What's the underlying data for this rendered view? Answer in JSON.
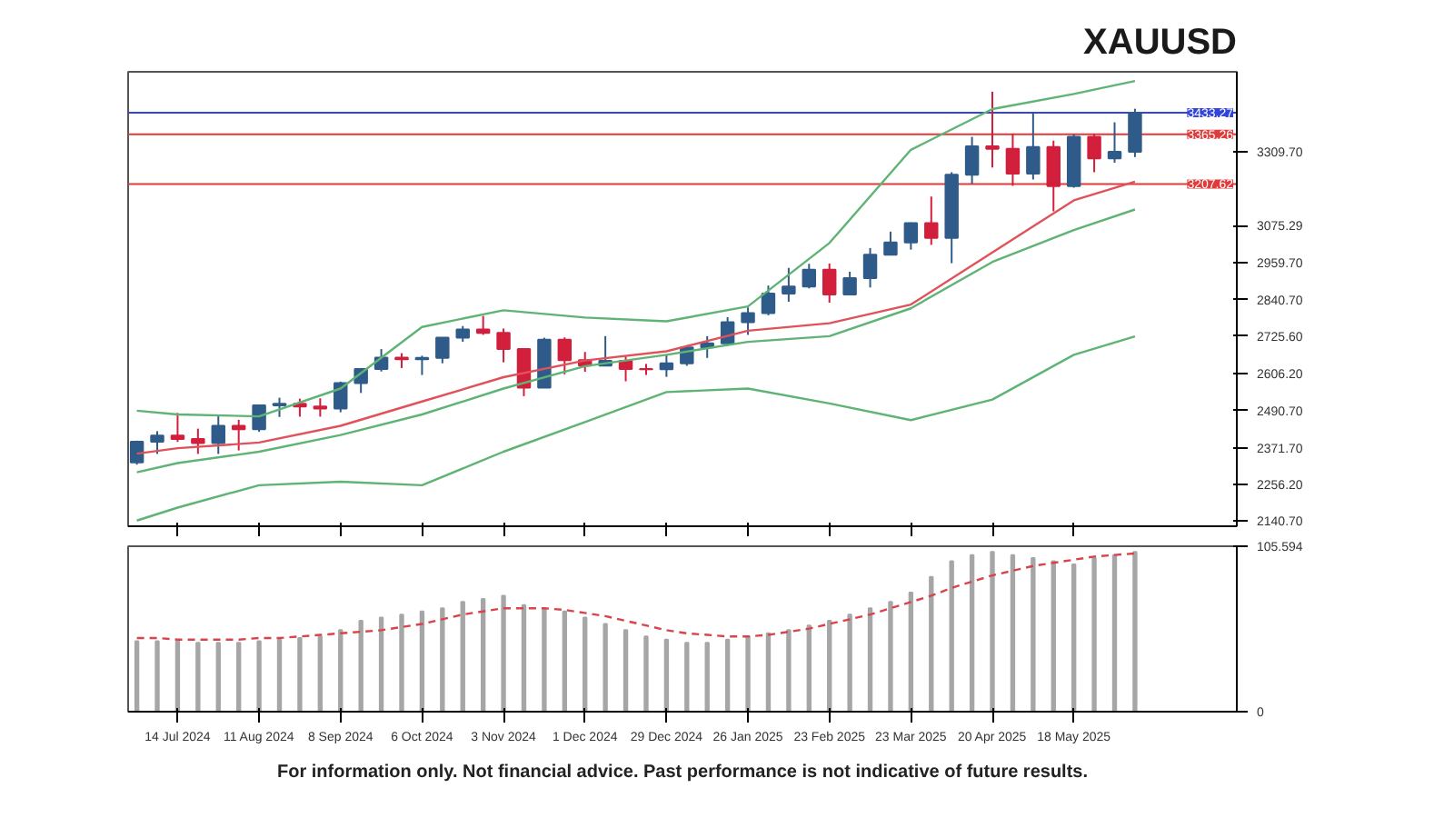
{
  "chart_data": [
    {
      "type": "candlestick",
      "title": "XAUUSD",
      "x": [
        "2024-06-30",
        "2024-07-07",
        "2024-07-14",
        "2024-07-21",
        "2024-07-28",
        "2024-08-04",
        "2024-08-11",
        "2024-08-18",
        "2024-08-25",
        "2024-09-01",
        "2024-09-08",
        "2024-09-15",
        "2024-09-22",
        "2024-09-29",
        "2024-10-06",
        "2024-10-13",
        "2024-10-20",
        "2024-10-27",
        "2024-11-03",
        "2024-11-10",
        "2024-11-17",
        "2024-11-24",
        "2024-12-01",
        "2024-12-08",
        "2024-12-15",
        "2024-12-22",
        "2024-12-29",
        "2025-01-05",
        "2025-01-12",
        "2025-01-19",
        "2025-01-26",
        "2025-02-02",
        "2025-02-09",
        "2025-02-16",
        "2025-02-23",
        "2025-03-02",
        "2025-03-09",
        "2025-03-16",
        "2025-03-23",
        "2025-03-30",
        "2025-04-06",
        "2025-04-13",
        "2025-04-20",
        "2025-04-27",
        "2025-05-04",
        "2025-05-11",
        "2025-05-18",
        "2025-05-25",
        "2025-06-01",
        "2025-06-08"
      ],
      "ohlc": [
        [
          2326,
          2395,
          2319,
          2392
        ],
        [
          2392,
          2425,
          2353,
          2411
        ],
        [
          2411,
          2483,
          2391,
          2400
        ],
        [
          2400,
          2433,
          2353,
          2387
        ],
        [
          2387,
          2477,
          2353,
          2442
        ],
        [
          2442,
          2461,
          2364,
          2431
        ],
        [
          2431,
          2509,
          2423,
          2507
        ],
        [
          2507,
          2531,
          2470,
          2512
        ],
        [
          2512,
          2528,
          2471,
          2503
        ],
        [
          2503,
          2529,
          2471,
          2497
        ],
        [
          2497,
          2582,
          2485,
          2577
        ],
        [
          2577,
          2625,
          2546,
          2622
        ],
        [
          2622,
          2685,
          2614,
          2658
        ],
        [
          2658,
          2672,
          2625,
          2653
        ],
        [
          2653,
          2664,
          2603,
          2657
        ],
        [
          2657,
          2721,
          2640,
          2721
        ],
        [
          2721,
          2758,
          2708,
          2747
        ],
        [
          2747,
          2790,
          2730,
          2736
        ],
        [
          2736,
          2750,
          2643,
          2685
        ],
        [
          2685,
          2687,
          2536,
          2563
        ],
        [
          2563,
          2721,
          2563,
          2715
        ],
        [
          2715,
          2722,
          2605,
          2650
        ],
        [
          2650,
          2676,
          2613,
          2633
        ],
        [
          2633,
          2726,
          2632,
          2648
        ],
        [
          2648,
          2664,
          2583,
          2622
        ],
        [
          2622,
          2638,
          2603,
          2621
        ],
        [
          2621,
          2665,
          2597,
          2640
        ],
        [
          2640,
          2697,
          2632,
          2690
        ],
        [
          2690,
          2726,
          2657,
          2703
        ],
        [
          2703,
          2786,
          2701,
          2770
        ],
        [
          2770,
          2817,
          2730,
          2799
        ],
        [
          2799,
          2886,
          2792,
          2861
        ],
        [
          2861,
          2942,
          2835,
          2883
        ],
        [
          2883,
          2955,
          2877,
          2936
        ],
        [
          2936,
          2956,
          2832,
          2858
        ],
        [
          2858,
          2930,
          2858,
          2910
        ],
        [
          2910,
          3005,
          2880,
          2984
        ],
        [
          2984,
          3057,
          2982,
          3023
        ],
        [
          3023,
          3086,
          3000,
          3084
        ],
        [
          3084,
          3168,
          3015,
          3037
        ],
        [
          3037,
          3245,
          2957,
          3237
        ],
        [
          3237,
          3357,
          3208,
          3327
        ],
        [
          3327,
          3500,
          3260,
          3319
        ],
        [
          3319,
          3367,
          3202,
          3241
        ],
        [
          3241,
          3435,
          3222,
          3325
        ],
        [
          3325,
          3345,
          3121,
          3201
        ],
        [
          3201,
          3365,
          3196,
          3357
        ],
        [
          3357,
          3366,
          3245,
          3289
        ],
        [
          3289,
          3403,
          3275,
          3310
        ],
        [
          3310,
          3446,
          3293,
          3433
        ]
      ],
      "colors": [
        "#2f5b8a",
        "#2f5b8a",
        "#d11f3c",
        "#d11f3c",
        "#2f5b8a",
        "#d11f3c",
        "#2f5b8a",
        "#2f5b8a",
        "#d11f3c",
        "#d11f3c",
        "#2f5b8a",
        "#2f5b8a",
        "#2f5b8a",
        "#d11f3c",
        "#2f5b8a",
        "#2f5b8a",
        "#2f5b8a",
        "#d11f3c",
        "#d11f3c",
        "#d11f3c",
        "#2f5b8a",
        "#d11f3c",
        "#d11f3c",
        "#2f5b8a",
        "#d11f3c",
        "#d11f3c",
        "#2f5b8a",
        "#2f5b8a",
        "#2f5b8a",
        "#2f5b8a",
        "#2f5b8a",
        "#2f5b8a",
        "#2f5b8a",
        "#2f5b8a",
        "#d11f3c",
        "#2f5b8a",
        "#2f5b8a",
        "#2f5b8a",
        "#2f5b8a",
        "#d11f3c",
        "#2f5b8a",
        "#2f5b8a",
        "#d11f3c",
        "#d11f3c",
        "#2f5b8a",
        "#d11f3c",
        "#2f5b8a",
        "#d11f3c",
        "#2f5b8a",
        "#2f5b8a"
      ],
      "series": [
        {
          "type": "line",
          "color": "#5fb374",
          "x": [
            "2024-06-30",
            "2024-07-14",
            "2024-08-11",
            "2024-09-08",
            "2024-10-06",
            "2024-11-03",
            "2024-12-01",
            "2024-12-29",
            "2025-01-26",
            "2025-02-23",
            "2025-03-23",
            "2025-04-20",
            "2025-05-18",
            "2025-06-08"
          ],
          "values": [
            2490,
            2478,
            2472,
            2560,
            2755,
            2808,
            2785,
            2773,
            2820,
            3021,
            3316,
            3445,
            3493,
            3534
          ]
        },
        {
          "type": "line",
          "color": "#e0525a",
          "x": [
            "2024-06-30",
            "2024-07-14",
            "2024-08-11",
            "2024-09-08",
            "2024-10-06",
            "2024-11-03",
            "2024-12-01",
            "2024-12-29",
            "2025-01-26",
            "2025-02-23",
            "2025-03-23",
            "2025-04-20",
            "2025-05-18",
            "2025-06-08"
          ],
          "values": [
            2354,
            2371,
            2389,
            2442,
            2519,
            2596,
            2649,
            2678,
            2743,
            2767,
            2826,
            2991,
            3156,
            3215
          ]
        },
        {
          "type": "line",
          "color": "#5fb374",
          "x": [
            "2024-06-30",
            "2024-07-14",
            "2024-08-11",
            "2024-09-08",
            "2024-10-06",
            "2024-11-03",
            "2024-12-01",
            "2024-12-29",
            "2025-01-26",
            "2025-02-23",
            "2025-03-23",
            "2025-04-20",
            "2025-05-18",
            "2025-06-08"
          ],
          "values": [
            2295,
            2324,
            2360,
            2413,
            2478,
            2560,
            2631,
            2667,
            2708,
            2726,
            2814,
            2961,
            3062,
            3127
          ]
        },
        {
          "type": "line",
          "color": "#5fb374",
          "x": [
            "2024-06-30",
            "2024-07-14",
            "2024-08-11",
            "2024-09-08",
            "2024-10-06",
            "2024-11-03",
            "2024-12-01",
            "2024-12-29",
            "2025-01-26",
            "2025-02-23",
            "2025-03-23",
            "2025-04-20",
            "2025-05-18",
            "2025-06-08"
          ],
          "values": [
            2142,
            2183,
            2254,
            2265,
            2254,
            2360,
            2454,
            2549,
            2560,
            2513,
            2460,
            2525,
            2667,
            2725
          ]
        }
      ],
      "xlim": [
        "2024-06-27",
        "2025-07-13"
      ],
      "xticks": [
        {
          "value": "2024-07-14",
          "label": null
        },
        {
          "value": "2024-08-11",
          "label": null
        },
        {
          "value": "2024-09-08",
          "label": null
        },
        {
          "value": "2024-10-06",
          "label": null
        },
        {
          "value": "2024-11-03",
          "label": null
        },
        {
          "value": "2024-12-01",
          "label": null
        },
        {
          "value": "2024-12-29",
          "label": null
        },
        {
          "value": "2025-01-26",
          "label": null
        },
        {
          "value": "2025-02-23",
          "label": null
        },
        {
          "value": "2025-03-23",
          "label": null
        },
        {
          "value": "2025-04-20",
          "label": null
        },
        {
          "value": "2025-05-18",
          "label": null
        }
      ],
      "ylim": [
        2124,
        3563
      ],
      "yticks": [
        {
          "value": 2140.7,
          "label": "2140.70"
        },
        {
          "value": 2256.2,
          "label": "2256.20"
        },
        {
          "value": 2371.7,
          "label": "2371.70"
        },
        {
          "value": 2490.7,
          "label": "2490.70"
        },
        {
          "value": 2606.2,
          "label": "2606.20"
        },
        {
          "value": 2725.6,
          "label": "2725.60"
        },
        {
          "value": 2840.7,
          "label": "2840.70"
        },
        {
          "value": 2959.7,
          "label": "2959.70"
        },
        {
          "value": 3075.29,
          "label": "3075.29"
        },
        {
          "value": 3309.7,
          "label": "3309.70"
        }
      ],
      "ref_lines": [
        {
          "axis": "y",
          "value": 3433.27,
          "label": "3433.27",
          "color": "#3344dd"
        },
        {
          "axis": "y",
          "value": 3365.26,
          "label": "3365.26",
          "color": "#e03a3a"
        },
        {
          "axis": "y",
          "value": 3207.62,
          "label": "3207.62",
          "color": "#e03a3a"
        }
      ],
      "tick_labels": "y"
    },
    {
      "type": "bar",
      "x": [
        "2024-06-30",
        "2024-07-07",
        "2024-07-14",
        "2024-07-21",
        "2024-07-28",
        "2024-08-04",
        "2024-08-11",
        "2024-08-18",
        "2024-08-25",
        "2024-09-01",
        "2024-09-08",
        "2024-09-15",
        "2024-09-22",
        "2024-09-29",
        "2024-10-06",
        "2024-10-13",
        "2024-10-20",
        "2024-10-27",
        "2024-11-03",
        "2024-11-10",
        "2024-11-17",
        "2024-11-24",
        "2024-12-01",
        "2024-12-08",
        "2024-12-15",
        "2024-12-22",
        "2024-12-29",
        "2025-01-05",
        "2025-01-12",
        "2025-01-19",
        "2025-01-26",
        "2025-02-02",
        "2025-02-09",
        "2025-02-16",
        "2025-02-23",
        "2025-03-02",
        "2025-03-09",
        "2025-03-16",
        "2025-03-23",
        "2025-03-30",
        "2025-04-06",
        "2025-04-13",
        "2025-04-20",
        "2025-04-27",
        "2025-05-04",
        "2025-05-11",
        "2025-05-18",
        "2025-05-25",
        "2025-06-01",
        "2025-06-08"
      ],
      "series": [
        {
          "type": "bar",
          "color": "#a6a6a6",
          "values": [
            45,
            45,
            45,
            44,
            44,
            44,
            45,
            46,
            47,
            48,
            52,
            58,
            60,
            62,
            64,
            66,
            70,
            72,
            74,
            68,
            66,
            64,
            60,
            56,
            52,
            48,
            46,
            44,
            44,
            46,
            48,
            50,
            52,
            55,
            58,
            62,
            66,
            70,
            76,
            86,
            96,
            100,
            102,
            100,
            98,
            96,
            94,
            98,
            100,
            102
          ]
        },
        {
          "type": "line",
          "color": "#d9434b",
          "line_style": "dashed",
          "values": [
            47,
            47,
            46,
            46,
            46,
            46,
            47,
            47,
            48,
            49,
            50,
            51,
            52,
            54,
            56,
            59,
            62,
            64,
            66,
            66,
            66,
            65,
            63,
            61,
            58,
            55,
            52,
            50,
            49,
            48,
            48,
            49,
            51,
            53,
            56,
            59,
            62,
            66,
            70,
            74,
            79,
            83,
            87,
            90,
            93,
            95,
            97,
            99,
            100,
            101
          ]
        }
      ],
      "xlim": [
        "2024-06-27",
        "2025-07-13"
      ],
      "xticks": [
        {
          "value": "2024-07-14",
          "label": "14 Jul 2024"
        },
        {
          "value": "2024-08-11",
          "label": "11 Aug 2024"
        },
        {
          "value": "2024-09-08",
          "label": "8 Sep 2024"
        },
        {
          "value": "2024-10-06",
          "label": "6 Oct 2024"
        },
        {
          "value": "2024-11-03",
          "label": "3 Nov 2024"
        },
        {
          "value": "2024-12-01",
          "label": "1 Dec 2024"
        },
        {
          "value": "2024-12-29",
          "label": "29 Dec 2024"
        },
        {
          "value": "2025-01-26",
          "label": "26 Jan 2025"
        },
        {
          "value": "2025-02-23",
          "label": "23 Feb 2025"
        },
        {
          "value": "2025-03-23",
          "label": "23 Mar 2025"
        },
        {
          "value": "2025-04-20",
          "label": "20 Apr 2025"
        },
        {
          "value": "2025-05-18",
          "label": "18 May 2025"
        }
      ],
      "ylim": [
        0,
        105.594
      ],
      "yticks": [
        0,
        {
          "value": 105.594,
          "label": "105.594"
        }
      ],
      "annotations": [
        "For information only. Not financial advice. Past performance is not indicative of future results."
      ]
    }
  ]
}
